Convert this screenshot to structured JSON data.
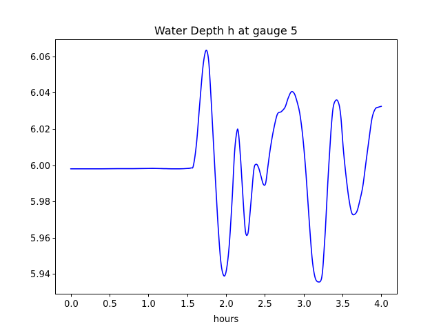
{
  "chart_data": {
    "type": "line",
    "title": "Water Depth h at gauge 5",
    "xlabel": "hours",
    "ylabel": "",
    "xlim": [
      -0.2,
      4.2
    ],
    "ylim": [
      5.929,
      6.0695
    ],
    "xticks": [
      0.0,
      0.5,
      1.0,
      1.5,
      2.0,
      2.5,
      3.0,
      3.5,
      4.0
    ],
    "xtick_labels": [
      "0.0",
      "0.5",
      "1.0",
      "1.5",
      "2.0",
      "2.5",
      "3.0",
      "3.5",
      "4.0"
    ],
    "yticks": [
      5.94,
      5.96,
      5.98,
      6.0,
      6.02,
      6.04,
      6.06
    ],
    "ytick_labels": [
      "5.94",
      "5.96",
      "5.98",
      "6.00",
      "6.02",
      "6.04",
      "6.06"
    ],
    "grid": false,
    "series": [
      {
        "color": "#0000ff",
        "x": [
          0.0,
          0.2,
          0.4,
          0.6,
          0.8,
          1.0,
          1.1,
          1.2,
          1.3,
          1.4,
          1.5,
          1.55,
          1.58,
          1.62,
          1.66,
          1.7,
          1.73,
          1.755,
          1.78,
          1.81,
          1.85,
          1.89,
          1.93,
          1.965,
          2.0,
          2.04,
          2.08,
          2.11,
          2.14,
          2.16,
          2.19,
          2.22,
          2.25,
          2.28,
          2.3,
          2.33,
          2.36,
          2.39,
          2.42,
          2.45,
          2.48,
          2.51,
          2.54,
          2.57,
          2.61,
          2.66,
          2.71,
          2.76,
          2.8,
          2.84,
          2.88,
          2.915,
          2.95,
          2.99,
          3.03,
          3.07,
          3.11,
          3.15,
          3.2,
          3.23,
          3.25,
          3.28,
          3.31,
          3.35,
          3.38,
          3.42,
          3.455,
          3.48,
          3.51,
          3.54,
          3.58,
          3.62,
          3.66,
          3.69,
          3.72,
          3.76,
          3.8,
          3.84,
          3.88,
          3.92,
          3.96,
          4.0
        ],
        "y": [
          5.998,
          5.998,
          5.998,
          5.9981,
          5.9981,
          5.9982,
          5.9982,
          5.9981,
          5.998,
          5.998,
          5.9982,
          5.9985,
          5.9998,
          6.012,
          6.033,
          6.053,
          6.0618,
          6.063,
          6.056,
          6.035,
          6.003,
          5.972,
          5.948,
          5.9395,
          5.941,
          5.955,
          5.982,
          6.007,
          6.0185,
          6.018,
          6.002,
          5.981,
          5.9635,
          5.962,
          5.969,
          5.984,
          5.998,
          6.0005,
          5.9985,
          5.994,
          5.9895,
          5.99,
          5.9995,
          6.009,
          6.019,
          6.028,
          6.0295,
          6.032,
          6.037,
          6.0405,
          6.0395,
          6.035,
          6.0285,
          6.015,
          5.995,
          5.97,
          5.948,
          5.9375,
          5.9355,
          5.9375,
          5.945,
          5.965,
          5.99,
          6.018,
          6.032,
          6.036,
          6.0335,
          6.026,
          6.009,
          5.996,
          5.982,
          5.9735,
          5.973,
          5.975,
          5.98,
          5.988,
          6.001,
          6.014,
          6.026,
          6.031,
          6.032,
          6.0325
        ]
      }
    ]
  }
}
